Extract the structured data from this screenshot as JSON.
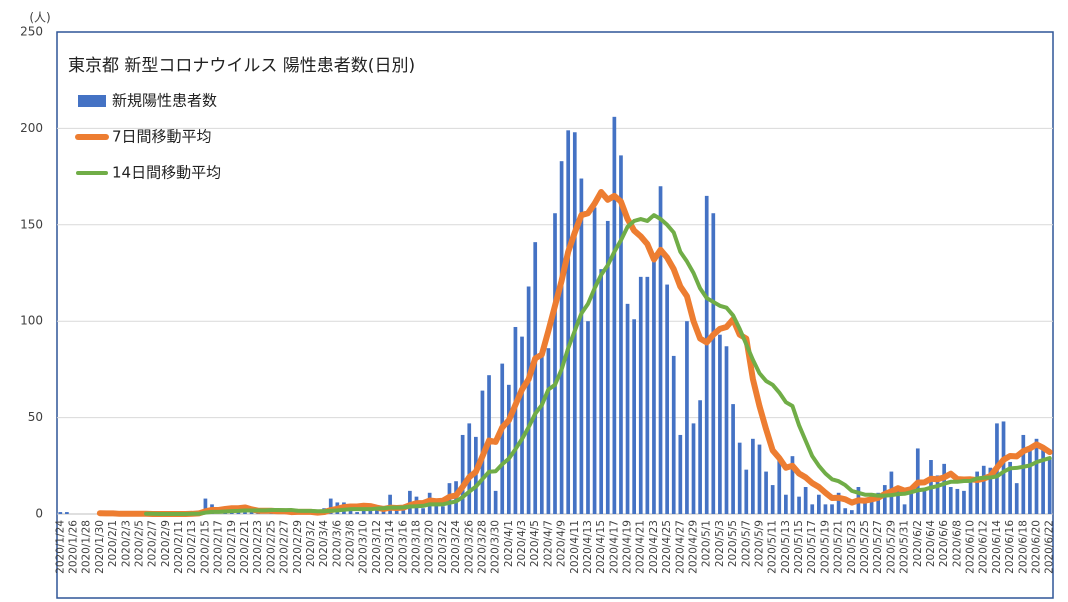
{
  "chart_data": {
    "type": "bar-line",
    "title": "東京都 新型コロナウイルス 陽性患者数(日別)",
    "y_unit": "(人)",
    "categories": [
      "2020/1/24",
      null,
      "2020/1/26",
      null,
      "2020/1/28",
      null,
      "2020/1/30",
      null,
      "2020/2/1",
      null,
      "2020/2/3",
      null,
      "2020/2/5",
      null,
      "2020/2/7",
      null,
      "2020/2/9",
      null,
      "2020/2/11",
      null,
      "2020/2/13",
      null,
      "2020/2/15",
      null,
      "2020/2/17",
      null,
      "2020/2/19",
      null,
      "2020/2/21",
      null,
      "2020/2/23",
      null,
      "2020/2/25",
      null,
      "2020/2/27",
      null,
      "2020/2/29",
      null,
      "2020/3/2",
      null,
      "2020/3/4",
      null,
      "2020/3/6",
      null,
      "2020/3/8",
      null,
      "2020/3/10",
      null,
      "2020/3/12",
      null,
      "2020/3/14",
      null,
      "2020/3/16",
      null,
      "2020/3/18",
      null,
      "2020/3/20",
      null,
      "2020/3/22",
      null,
      "2020/3/24",
      null,
      "2020/3/26",
      null,
      "2020/3/28",
      null,
      "2020/3/30",
      null,
      "2020/4/1",
      null,
      "2020/4/3",
      null,
      "2020/4/5",
      null,
      "2020/4/7",
      null,
      "2020/4/9",
      null,
      "2020/4/11",
      null,
      "2020/4/13",
      null,
      "2020/4/15",
      null,
      "2020/4/17",
      null,
      "2020/4/19",
      null,
      "2020/4/21",
      null,
      "2020/4/23",
      null,
      "2020/4/25",
      null,
      "2020/4/27",
      null,
      "2020/4/29",
      null,
      "2020/5/1",
      null,
      "2020/5/3",
      null,
      "2020/5/5",
      null,
      "2020/5/7",
      null,
      "2020/5/9",
      null,
      "2020/5/11",
      null,
      "2020/5/13",
      null,
      "2020/5/15",
      null,
      "2020/5/17",
      null,
      "2020/5/19",
      null,
      "2020/5/21",
      null,
      "2020/5/23",
      null,
      "2020/5/25",
      null,
      "2020/5/27",
      null,
      "2020/5/29",
      null,
      "2020/5/31",
      null,
      "2020/6/2",
      null,
      "2020/6/4",
      null,
      "2020/6/6",
      null,
      "2020/6/8",
      null,
      "2020/6/10",
      null,
      "2020/6/12",
      null,
      "2020/6/14",
      null,
      "2020/6/16",
      null,
      "2020/6/18",
      null,
      "2020/6/20",
      null,
      "2020/6/22"
    ],
    "series": [
      {
        "name": "新規陽性患者数",
        "kind": "bar",
        "color": "#4472c4",
        "values": [
          1,
          1,
          0,
          0,
          0,
          0,
          1,
          0,
          0,
          0,
          0,
          0,
          0,
          0,
          0,
          0,
          0,
          0,
          0,
          0,
          1,
          1,
          8,
          5,
          0,
          3,
          3,
          1,
          3,
          1,
          1,
          0,
          3,
          1,
          1,
          0,
          1,
          1,
          1,
          0,
          3,
          8,
          6,
          6,
          3,
          1,
          3,
          2,
          2,
          2,
          10,
          2,
          2,
          12,
          9,
          3,
          11,
          7,
          4,
          16,
          17,
          41,
          47,
          40,
          64,
          72,
          12,
          78,
          67,
          97,
          92,
          118,
          141,
          84,
          86,
          156,
          183,
          199,
          198,
          174,
          100,
          159,
          127,
          152,
          206,
          186,
          109,
          101,
          123,
          123,
          134,
          170,
          119,
          82,
          41,
          100,
          47,
          59,
          165,
          156,
          93,
          87,
          57,
          37,
          23,
          39,
          36,
          22,
          15,
          28,
          10,
          30,
          9,
          14,
          5,
          10,
          5,
          5,
          11,
          3,
          2,
          14,
          8,
          10,
          11,
          15,
          22,
          14,
          5,
          13,
          34,
          12,
          28,
          20,
          26,
          14,
          13,
          12,
          18,
          22,
          25,
          24,
          47,
          48,
          27,
          16,
          41,
          35,
          39,
          35,
          29
        ]
      },
      {
        "name": "7日間移動平均",
        "kind": "line",
        "color": "#ed7d31",
        "values": [
          null,
          null,
          null,
          null,
          null,
          null,
          0.4,
          0.3,
          0.3,
          0.1,
          0.1,
          0.1,
          0.1,
          0.1,
          0,
          0,
          0,
          0,
          0,
          0,
          0.1,
          0.3,
          1.4,
          2.1,
          2.1,
          2.6,
          3.0,
          3.0,
          3.4,
          2.4,
          1.7,
          1.7,
          1.7,
          1.4,
          1.4,
          1.0,
          1.1,
          1.1,
          1.1,
          0.7,
          1.0,
          2.0,
          2.7,
          3.6,
          3.9,
          3.9,
          4.3,
          4.1,
          3.3,
          2.6,
          3.3,
          3.1,
          3.3,
          4.6,
          5.6,
          5.7,
          7.0,
          6.6,
          6.9,
          8.9,
          9.6,
          14.1,
          19.1,
          21.9,
          29.9,
          38.1,
          37.4,
          44.9,
          48.6,
          56.6,
          64.6,
          69.9,
          80.7,
          82.7,
          95,
          108,
          121,
          136,
          146,
          155,
          156,
          161,
          167,
          163,
          165,
          162,
          153,
          147,
          144,
          140,
          132,
          137,
          133,
          127,
          118,
          113,
          100,
          91,
          89,
          93,
          96,
          97,
          101,
          93,
          91,
          70,
          56,
          44,
          33,
          29,
          24,
          25,
          21,
          19,
          16,
          14,
          11,
          8.3,
          8.4,
          7.6,
          5.9,
          7.1,
          6.9,
          7.6,
          8.4,
          10.4,
          11.7,
          13.4,
          12.1,
          12.9,
          16.3,
          16.4,
          18.3,
          18.0,
          19.0,
          20.9,
          18.1,
          17.9,
          18.0,
          17.6,
          18.4,
          19.7,
          24.0,
          28.1,
          30.1,
          29.9,
          32.6,
          34.0,
          36.1,
          34.4,
          32.1
        ]
      },
      {
        "name": "14日間移動平均",
        "kind": "line",
        "color": "#70ad47",
        "values": [
          null,
          null,
          null,
          null,
          null,
          null,
          null,
          null,
          null,
          null,
          null,
          null,
          null,
          0.1,
          0.1,
          0,
          0,
          0,
          0,
          0,
          0.1,
          0.1,
          0.7,
          1.1,
          1.1,
          1.3,
          1.5,
          1.6,
          1.8,
          1.8,
          1.9,
          1.9,
          2.1,
          2.1,
          2.0,
          2.1,
          1.7,
          1.6,
          1.6,
          1.4,
          1.4,
          1.7,
          1.9,
          2.2,
          2.5,
          2.5,
          2.5,
          2.5,
          2.8,
          3.0,
          3.3,
          3.3,
          3.4,
          3.9,
          4.0,
          4.2,
          5.0,
          5.0,
          5.0,
          5.8,
          6.5,
          8.8,
          11.6,
          14.2,
          18.1,
          21.9,
          22.2,
          25.8,
          28.7,
          33.6,
          38.9,
          45,
          52,
          56.5,
          64.6,
          67,
          75,
          86,
          95,
          104,
          109,
          117,
          124,
          129,
          136,
          142,
          149,
          152,
          153,
          152,
          155,
          153,
          150,
          146,
          136,
          131,
          125,
          117,
          112,
          110,
          108,
          107,
          103,
          96,
          88,
          80,
          73,
          69,
          67,
          63,
          58,
          56,
          46,
          38,
          30,
          25,
          21,
          18,
          17,
          15,
          12,
          11,
          10,
          10,
          9.5,
          9.5,
          9.8,
          10.3,
          10.5,
          11.3,
          12.3,
          12.7,
          13.7,
          14.5,
          15.7,
          16.7,
          16.7,
          17.1,
          17.2,
          18.4,
          18.8,
          18.9,
          19.5,
          21.9,
          23.7,
          23.9,
          24.5,
          25.2,
          26.9,
          28.0,
          29.0
        ]
      }
    ],
    "ylim": [
      0,
      250
    ],
    "yticks": [
      0,
      50,
      100,
      150,
      200,
      250
    ],
    "grid": true,
    "legend": "upper left"
  }
}
